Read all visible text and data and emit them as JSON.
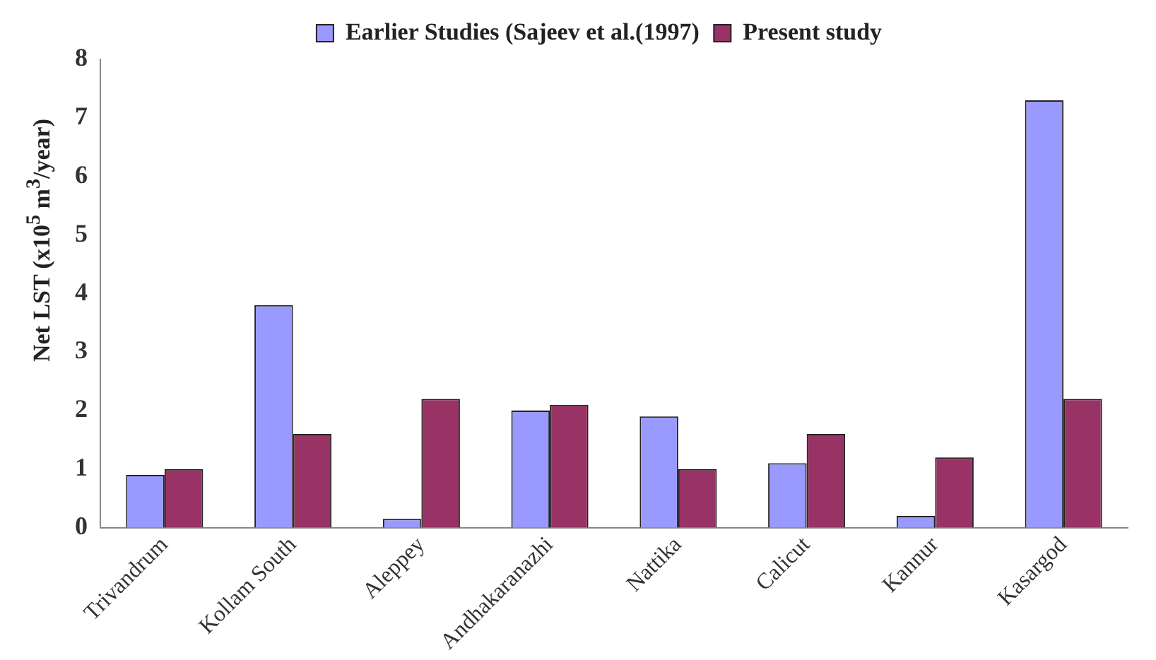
{
  "chart_data": {
    "type": "bar",
    "ylabel": "Net LST (x10$^{5}$ m$^{3}$/year)",
    "categories": [
      "Trivandrum",
      "Kollam South",
      "Aleppey",
      "Andhakaranazhi",
      "Nattika",
      "Calicut",
      "Kannur",
      "Kasargod"
    ],
    "series": [
      {
        "name": "Earlier Studies (Sajeev et al.(1997)",
        "color": "#9999ff",
        "values": [
          0.9,
          3.8,
          0.15,
          2.0,
          1.9,
          1.1,
          0.2,
          7.3
        ]
      },
      {
        "name": "Present study",
        "color": "#993366",
        "values": [
          1.0,
          1.6,
          2.2,
          2.1,
          1.0,
          1.6,
          1.2,
          2.2
        ]
      }
    ],
    "ylim": [
      0,
      8
    ],
    "yticks": [
      0,
      1,
      2,
      3,
      4,
      5,
      6,
      7,
      8
    ],
    "grid": false,
    "legend": "top"
  }
}
